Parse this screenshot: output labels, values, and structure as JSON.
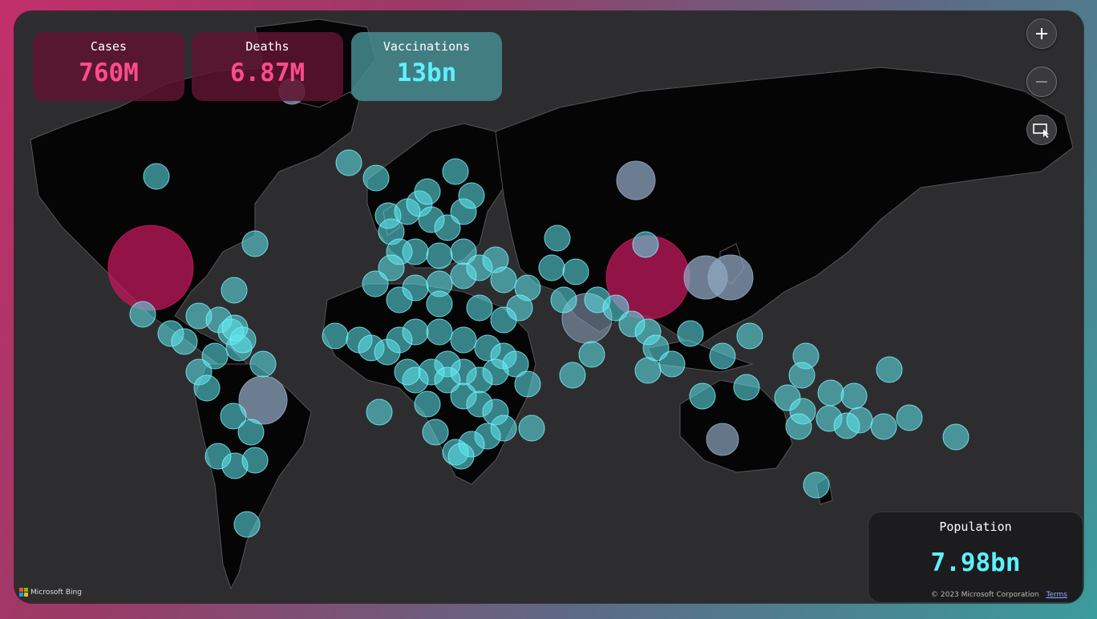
{
  "kpis": {
    "cases": {
      "label": "Cases",
      "value": "760M"
    },
    "deaths": {
      "label": "Deaths",
      "value": "6.87M"
    },
    "vaccinations": {
      "label": "Vaccinations",
      "value": "13bn"
    }
  },
  "population": {
    "label": "Population",
    "value": "7.98bn"
  },
  "map_controls": {
    "zoom_in_icon": "plus-icon",
    "zoom_out_icon": "minus-icon",
    "select_icon": "selection-cursor-icon"
  },
  "attribution": {
    "brand": "Microsoft Bing",
    "copyright": "© 2023 Microsoft Corporation",
    "terms": "Terms"
  },
  "colors": {
    "cases": "#ff4c8a",
    "vaccinations": "#5cf2ff",
    "bubble_cyan": "#5ee9f0",
    "bubble_magenta": "#c2185b",
    "bubble_slate": "#8fa6c0"
  }
}
